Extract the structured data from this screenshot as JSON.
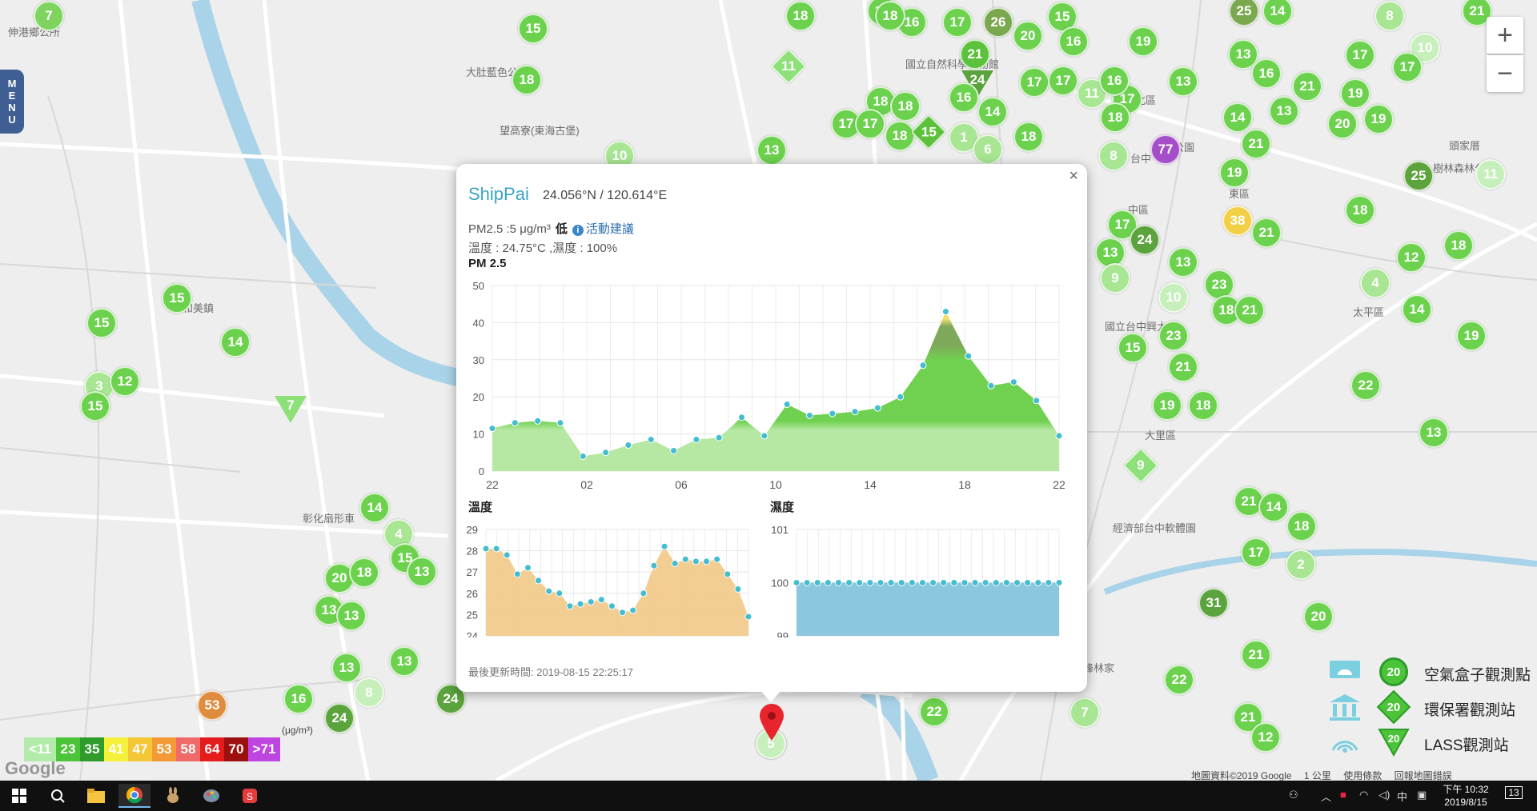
{
  "map": {
    "place_labels": [
      {
        "text": "伸港鄉公所",
        "x": 10,
        "y": 30
      },
      {
        "text": "大肚藍色公路",
        "x": 582,
        "y": 80
      },
      {
        "text": "望高寮(東海古堡)",
        "x": 624,
        "y": 153
      },
      {
        "text": "和美鎮",
        "x": 228,
        "y": 375
      },
      {
        "text": "國立自然科學博物館",
        "x": 1131,
        "y": 70
      },
      {
        "text": "北區",
        "x": 1418,
        "y": 115
      },
      {
        "text": "中區",
        "x": 1409,
        "y": 252
      },
      {
        "text": "東區",
        "x": 1535,
        "y": 232
      },
      {
        "text": "台中公園",
        "x": 1440,
        "y": 174
      },
      {
        "text": "太平區",
        "x": 1690,
        "y": 380
      },
      {
        "text": "大里區",
        "x": 1430,
        "y": 534
      },
      {
        "text": "彰化扇形車",
        "x": 378,
        "y": 638
      },
      {
        "text": "經濟部台中軟體園",
        "x": 1390,
        "y": 650
      },
      {
        "text": "霧峰林家",
        "x": 1340,
        "y": 825
      },
      {
        "text": "台中",
        "x": 1412,
        "y": 188
      },
      {
        "text": "國立台中興大",
        "x": 1380,
        "y": 398
      },
      {
        "text": "頭家厝",
        "x": 1810,
        "y": 172
      },
      {
        "text": "樹林森林公園",
        "x": 1790,
        "y": 200
      }
    ],
    "markers": [
      {
        "v": "7",
        "x": 61,
        "y": 20,
        "c": "#7fd460"
      },
      {
        "v": "15",
        "x": 666,
        "y": 36,
        "c": "#6cd24e"
      },
      {
        "v": "18",
        "x": 658,
        "y": 100,
        "c": "#6cd24e"
      },
      {
        "v": "11",
        "x": 985,
        "y": 83,
        "c": "#8ee079",
        "s": "d"
      },
      {
        "v": "10",
        "x": 774,
        "y": 195,
        "c": "#a8e693"
      },
      {
        "v": "18",
        "x": 1000,
        "y": 20,
        "c": "#6cd24e"
      },
      {
        "v": "16",
        "x": 1102,
        "y": 14,
        "c": "#6cd24e"
      },
      {
        "v": "16",
        "x": 1139,
        "y": 28,
        "c": "#6cd24e"
      },
      {
        "v": "17",
        "x": 1196,
        "y": 28,
        "c": "#6cd24e"
      },
      {
        "v": "26",
        "x": 1247,
        "y": 28,
        "c": "#7aa84e"
      },
      {
        "v": "20",
        "x": 1284,
        "y": 45,
        "c": "#6cd24e"
      },
      {
        "v": "15",
        "x": 1327,
        "y": 21,
        "c": "#6cd24e"
      },
      {
        "v": "16",
        "x": 1341,
        "y": 52,
        "c": "#6cd24e"
      },
      {
        "v": "21",
        "x": 1218,
        "y": 68,
        "c": "#5cc23c"
      },
      {
        "v": "24",
        "x": 1221,
        "y": 105,
        "c": "#5ba33c",
        "s": "t"
      },
      {
        "v": "16",
        "x": 1204,
        "y": 122,
        "c": "#6cd24e"
      },
      {
        "v": "18",
        "x": 1100,
        "y": 127,
        "c": "#6cd24e"
      },
      {
        "v": "18",
        "x": 1131,
        "y": 133,
        "c": "#6cd24e"
      },
      {
        "v": "17",
        "x": 1057,
        "y": 155,
        "c": "#6cd24e"
      },
      {
        "v": "17",
        "x": 1087,
        "y": 155,
        "c": "#6cd24e"
      },
      {
        "v": "18",
        "x": 1124,
        "y": 170,
        "c": "#6cd24e"
      },
      {
        "v": "15",
        "x": 1160,
        "y": 165,
        "c": "#5cc23c",
        "s": "d"
      },
      {
        "v": "1",
        "x": 1204,
        "y": 172,
        "c": "#a8e693"
      },
      {
        "v": "6",
        "x": 1234,
        "y": 187,
        "c": "#a8e693"
      },
      {
        "v": "14",
        "x": 1240,
        "y": 140,
        "c": "#6cd24e"
      },
      {
        "v": "18",
        "x": 1285,
        "y": 171,
        "c": "#6cd24e"
      },
      {
        "v": "17",
        "x": 1292,
        "y": 103,
        "c": "#6cd24e"
      },
      {
        "v": "17",
        "x": 1328,
        "y": 101,
        "c": "#6cd24e"
      },
      {
        "v": "11",
        "x": 1364,
        "y": 117,
        "c": "#a8e693"
      },
      {
        "v": "17",
        "x": 1408,
        "y": 124,
        "c": "#6cd24e"
      },
      {
        "v": "16",
        "x": 1392,
        "y": 101,
        "c": "#6cd24e"
      },
      {
        "v": "18",
        "x": 1393,
        "y": 147,
        "c": "#6cd24e"
      },
      {
        "v": "8",
        "x": 1391,
        "y": 195,
        "c": "#a8e693"
      },
      {
        "v": "13",
        "x": 964,
        "y": 188,
        "c": "#6cd24e"
      },
      {
        "v": "18",
        "x": 1112,
        "y": 20,
        "c": "#6cd24e"
      },
      {
        "v": "19",
        "x": 1428,
        "y": 52,
        "c": "#6cd24e"
      },
      {
        "v": "13",
        "x": 1478,
        "y": 102,
        "c": "#6cd24e"
      },
      {
        "v": "77",
        "x": 1456,
        "y": 187,
        "c": "#a54ec9"
      },
      {
        "v": "25",
        "x": 1554,
        "y": 14,
        "c": "#7aa84e"
      },
      {
        "v": "14",
        "x": 1596,
        "y": 14,
        "c": "#6cd24e"
      },
      {
        "v": "13",
        "x": 1553,
        "y": 68,
        "c": "#6cd24e"
      },
      {
        "v": "16",
        "x": 1582,
        "y": 92,
        "c": "#6cd24e"
      },
      {
        "v": "21",
        "x": 1633,
        "y": 108,
        "c": "#6cd24e"
      },
      {
        "v": "13",
        "x": 1604,
        "y": 139,
        "c": "#6cd24e"
      },
      {
        "v": "14",
        "x": 1546,
        "y": 147,
        "c": "#6cd24e"
      },
      {
        "v": "21",
        "x": 1569,
        "y": 180,
        "c": "#6cd24e"
      },
      {
        "v": "19",
        "x": 1542,
        "y": 216,
        "c": "#6cd24e"
      },
      {
        "v": "38",
        "x": 1546,
        "y": 276,
        "c": "#f2d045"
      },
      {
        "v": "21",
        "x": 1582,
        "y": 291,
        "c": "#6cd24e"
      },
      {
        "v": "8",
        "x": 1736,
        "y": 20,
        "c": "#a8e693"
      },
      {
        "v": "10",
        "x": 1780,
        "y": 60,
        "c": "#c7efbb"
      },
      {
        "v": "17",
        "x": 1699,
        "y": 69,
        "c": "#6cd24e"
      },
      {
        "v": "17",
        "x": 1758,
        "y": 84,
        "c": "#6cd24e"
      },
      {
        "v": "19",
        "x": 1693,
        "y": 117,
        "c": "#6cd24e"
      },
      {
        "v": "20",
        "x": 1677,
        "y": 155,
        "c": "#6cd24e"
      },
      {
        "v": "19",
        "x": 1722,
        "y": 149,
        "c": "#6cd24e"
      },
      {
        "v": "21",
        "x": 1845,
        "y": 14,
        "c": "#6cd24e"
      },
      {
        "v": "25",
        "x": 1772,
        "y": 220,
        "c": "#5ba33c"
      },
      {
        "v": "11",
        "x": 1862,
        "y": 218,
        "c": "#c7efbb"
      },
      {
        "v": "18",
        "x": 1699,
        "y": 263,
        "c": "#6cd24e"
      },
      {
        "v": "18",
        "x": 1822,
        "y": 307,
        "c": "#6cd24e"
      },
      {
        "v": "12",
        "x": 1763,
        "y": 322,
        "c": "#6cd24e"
      },
      {
        "v": "4",
        "x": 1718,
        "y": 354,
        "c": "#a8e693"
      },
      {
        "v": "14",
        "x": 1770,
        "y": 387,
        "c": "#6cd24e"
      },
      {
        "v": "19",
        "x": 1838,
        "y": 420,
        "c": "#6cd24e"
      },
      {
        "v": "17",
        "x": 1402,
        "y": 281,
        "c": "#6cd24e"
      },
      {
        "v": "24",
        "x": 1430,
        "y": 300,
        "c": "#5ba33c"
      },
      {
        "v": "13",
        "x": 1387,
        "y": 316,
        "c": "#6cd24e"
      },
      {
        "v": "13",
        "x": 1478,
        "y": 328,
        "c": "#6cd24e"
      },
      {
        "v": "9",
        "x": 1393,
        "y": 348,
        "c": "#a8e693"
      },
      {
        "v": "10",
        "x": 1466,
        "y": 372,
        "c": "#c7efbb"
      },
      {
        "v": "23",
        "x": 1523,
        "y": 356,
        "c": "#6cd24e"
      },
      {
        "v": "18",
        "x": 1532,
        "y": 388,
        "c": "#6cd24e"
      },
      {
        "v": "21",
        "x": 1561,
        "y": 388,
        "c": "#6cd24e"
      },
      {
        "v": "23",
        "x": 1466,
        "y": 420,
        "c": "#6cd24e"
      },
      {
        "v": "15",
        "x": 1415,
        "y": 435,
        "c": "#6cd24e"
      },
      {
        "v": "21",
        "x": 1478,
        "y": 459,
        "c": "#6cd24e"
      },
      {
        "v": "22",
        "x": 1706,
        "y": 482,
        "c": "#6cd24e"
      },
      {
        "v": "19",
        "x": 1458,
        "y": 507,
        "c": "#6cd24e"
      },
      {
        "v": "18",
        "x": 1503,
        "y": 507,
        "c": "#6cd24e"
      },
      {
        "v": "9",
        "x": 1425,
        "y": 582,
        "c": "#8ee079",
        "s": "d"
      },
      {
        "v": "13",
        "x": 1791,
        "y": 541,
        "c": "#6cd24e"
      },
      {
        "v": "21",
        "x": 1560,
        "y": 627,
        "c": "#6cd24e"
      },
      {
        "v": "14",
        "x": 1591,
        "y": 634,
        "c": "#6cd24e"
      },
      {
        "v": "18",
        "x": 1626,
        "y": 658,
        "c": "#6cd24e"
      },
      {
        "v": "17",
        "x": 1569,
        "y": 691,
        "c": "#6cd24e"
      },
      {
        "v": "2",
        "x": 1625,
        "y": 706,
        "c": "#a8e693"
      },
      {
        "v": "31",
        "x": 1516,
        "y": 754,
        "c": "#5ba33c"
      },
      {
        "v": "20",
        "x": 1647,
        "y": 771,
        "c": "#6cd24e"
      },
      {
        "v": "21",
        "x": 1569,
        "y": 819,
        "c": "#6cd24e"
      },
      {
        "v": "22",
        "x": 1473,
        "y": 850,
        "c": "#6cd24e"
      },
      {
        "v": "21",
        "x": 1559,
        "y": 897,
        "c": "#6cd24e"
      },
      {
        "v": "12",
        "x": 1581,
        "y": 922,
        "c": "#6cd24e"
      },
      {
        "v": "7",
        "x": 1355,
        "y": 891,
        "c": "#a8e693"
      },
      {
        "v": "22",
        "x": 1167,
        "y": 890,
        "c": "#6cd24e"
      },
      {
        "v": "5",
        "x": 963,
        "y": 930,
        "c": "#c7efbb"
      },
      {
        "v": "15",
        "x": 221,
        "y": 373,
        "c": "#6cd24e"
      },
      {
        "v": "15",
        "x": 127,
        "y": 404,
        "c": "#6cd24e"
      },
      {
        "v": "14",
        "x": 294,
        "y": 428,
        "c": "#6cd24e"
      },
      {
        "v": "3",
        "x": 124,
        "y": 483,
        "c": "#a8e693"
      },
      {
        "v": "12",
        "x": 156,
        "y": 477,
        "c": "#6cd24e"
      },
      {
        "v": "15",
        "x": 119,
        "y": 508,
        "c": "#6cd24e"
      },
      {
        "v": "7",
        "x": 363,
        "y": 512,
        "c": "#8ee079",
        "s": "t"
      },
      {
        "v": "14",
        "x": 468,
        "y": 635,
        "c": "#6cd24e"
      },
      {
        "v": "4",
        "x": 498,
        "y": 668,
        "c": "#a8e693"
      },
      {
        "v": "15",
        "x": 506,
        "y": 698,
        "c": "#6cd24e"
      },
      {
        "v": "13",
        "x": 527,
        "y": 715,
        "c": "#6cd24e"
      },
      {
        "v": "20",
        "x": 424,
        "y": 723,
        "c": "#6cd24e"
      },
      {
        "v": "18",
        "x": 455,
        "y": 716,
        "c": "#6cd24e"
      },
      {
        "v": "13",
        "x": 411,
        "y": 763,
        "c": "#6cd24e"
      },
      {
        "v": "13",
        "x": 439,
        "y": 770,
        "c": "#6cd24e"
      },
      {
        "v": "13",
        "x": 433,
        "y": 835,
        "c": "#6cd24e"
      },
      {
        "v": "13",
        "x": 505,
        "y": 827,
        "c": "#6cd24e"
      },
      {
        "v": "8",
        "x": 461,
        "y": 866,
        "c": "#c7efbb"
      },
      {
        "v": "16",
        "x": 373,
        "y": 874,
        "c": "#6cd24e"
      },
      {
        "v": "24",
        "x": 424,
        "y": 898,
        "c": "#5ba33c"
      },
      {
        "v": "24",
        "x": 563,
        "y": 874,
        "c": "#5ba33c"
      },
      {
        "v": "53",
        "x": 265,
        "y": 882,
        "c": "#e08c3e"
      }
    ],
    "selected_pin_label": "5"
  },
  "controls": {
    "menu_label": [
      "M",
      "E",
      "N",
      "U"
    ],
    "zoom_in": "+",
    "zoom_out": "−"
  },
  "popup": {
    "close": "×",
    "station_name": "ShipPai",
    "coordinates": "24.056°N / 120.614°E",
    "pm_text": "PM2.5 :5 μg/m³",
    "pm_level": "低",
    "activity_link": "活動建議",
    "env_text": "溫度 : 24.75°C ,濕度 : 100%",
    "pm_chart_title": "PM 2.5",
    "temp_chart_title": "溫度",
    "hum_chart_title": "濕度",
    "update_time": "最後更新時間: 2019-08-15 22:25:17"
  },
  "chart_data": [
    {
      "type": "area",
      "title": "PM 2.5",
      "x_tick_labels": [
        "22",
        "02",
        "06",
        "10",
        "14",
        "18",
        "22"
      ],
      "y_ticks": [
        0,
        10,
        20,
        30,
        40,
        50
      ],
      "ylim": [
        0,
        50
      ],
      "values": [
        11.5,
        13,
        13.5,
        13,
        4,
        5,
        7,
        8.5,
        5.5,
        8.5,
        9,
        14.5,
        9.5,
        18,
        15,
        15.5,
        16,
        17,
        20,
        28.5,
        43,
        31,
        23,
        24,
        19,
        9.5
      ],
      "fill_light": "#b6e8a3",
      "fill_dark": "#6fd14f",
      "point_color": "#44bdcf"
    },
    {
      "type": "area",
      "title": "溫度",
      "y_ticks": [
        24,
        25,
        26,
        27,
        28,
        29
      ],
      "ylim": [
        24,
        29
      ],
      "values": [
        28.1,
        28.1,
        27.8,
        26.9,
        27.2,
        26.6,
        26.1,
        26,
        25.4,
        25.5,
        25.6,
        25.7,
        25.4,
        25.1,
        25.2,
        26,
        27.3,
        28.2,
        27.4,
        27.6,
        27.5,
        27.5,
        27.6,
        26.9,
        26.2,
        24.9
      ],
      "fill": "#f2c987",
      "point_color": "#44bdcf"
    },
    {
      "type": "area",
      "title": "濕度",
      "y_ticks": [
        99,
        100,
        101
      ],
      "ylim": [
        99,
        101
      ],
      "values": [
        100,
        100,
        100,
        100,
        100,
        100,
        100,
        100,
        100,
        100,
        100,
        100,
        100,
        100,
        100,
        100,
        100,
        100,
        100,
        100,
        100,
        100,
        100,
        100,
        100,
        100
      ],
      "fill": "#7ec1dc",
      "point_color": "#44bdcf"
    }
  ],
  "aqi_legend": {
    "cells": [
      {
        "label": "<11",
        "color": "#b2ebaa"
      },
      {
        "label": "23",
        "color": "#4cc43a"
      },
      {
        "label": "35",
        "color": "#2e9b2a"
      },
      {
        "label": "41",
        "color": "#f5f03a"
      },
      {
        "label": "47",
        "color": "#f5c635"
      },
      {
        "label": "53",
        "color": "#f39a35"
      },
      {
        "label": "58",
        "color": "#f06a6a"
      },
      {
        "label": "64",
        "color": "#e61b1b"
      },
      {
        "label": "70",
        "color": "#9c1010"
      },
      {
        "label": ">71",
        "color": "#bf45e0"
      }
    ],
    "unit": "(μg/m³)"
  },
  "map_legend": {
    "items": [
      {
        "label": "空氣盒子觀測點",
        "value": "20"
      },
      {
        "label": "環保署觀測站",
        "value": "20"
      },
      {
        "label": "LASS觀測站",
        "value": "20"
      }
    ]
  },
  "map_footer": {
    "data_credit": "地圖資料©2019 Google",
    "scale": "1 公里",
    "terms": "使用條款",
    "report": "回報地圖錯誤"
  },
  "google_logo": "Google",
  "taskbar": {
    "time": "下午 10:32",
    "date": "2019/8/15",
    "ime": "中",
    "notifications": "13"
  }
}
